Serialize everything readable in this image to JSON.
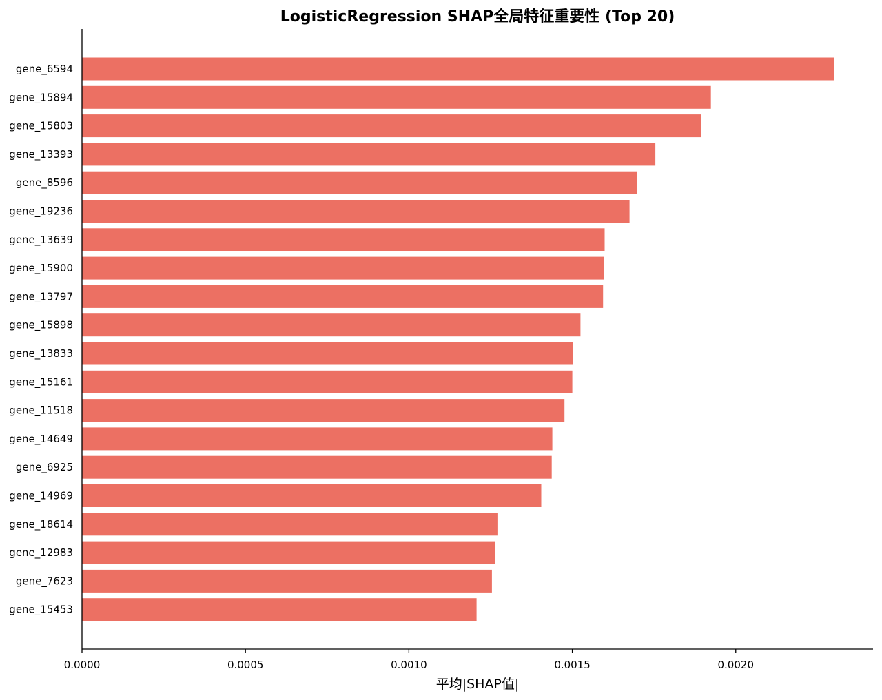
{
  "chart_data": {
    "type": "bar",
    "orientation": "horizontal",
    "title": "LogisticRegression SHAP全局特征重要性 (Top 20)",
    "xlabel": "平均|SHAP值|",
    "ylabel": "",
    "xlim": [
      0,
      0.00242
    ],
    "xticks": [
      "0.0000",
      "0.0005",
      "0.0010",
      "0.0015",
      "0.0020"
    ],
    "xtick_values": [
      0,
      0.0005,
      0.001,
      0.0015,
      0.002
    ],
    "bar_color": "#ec7063",
    "grid": false,
    "categories": [
      "gene_6594",
      "gene_15894",
      "gene_15803",
      "gene_13393",
      "gene_8596",
      "gene_19236",
      "gene_13639",
      "gene_15900",
      "gene_13797",
      "gene_15898",
      "gene_13833",
      "gene_15161",
      "gene_11518",
      "gene_14649",
      "gene_6925",
      "gene_14969",
      "gene_18614",
      "gene_12983",
      "gene_7623",
      "gene_15453"
    ],
    "values": [
      0.002302,
      0.001924,
      0.001895,
      0.001754,
      0.001697,
      0.001675,
      0.001599,
      0.001597,
      0.001594,
      0.001525,
      0.001502,
      0.0015,
      0.001476,
      0.001439,
      0.001437,
      0.001405,
      0.001271,
      0.001263,
      0.001254,
      0.001207
    ]
  }
}
